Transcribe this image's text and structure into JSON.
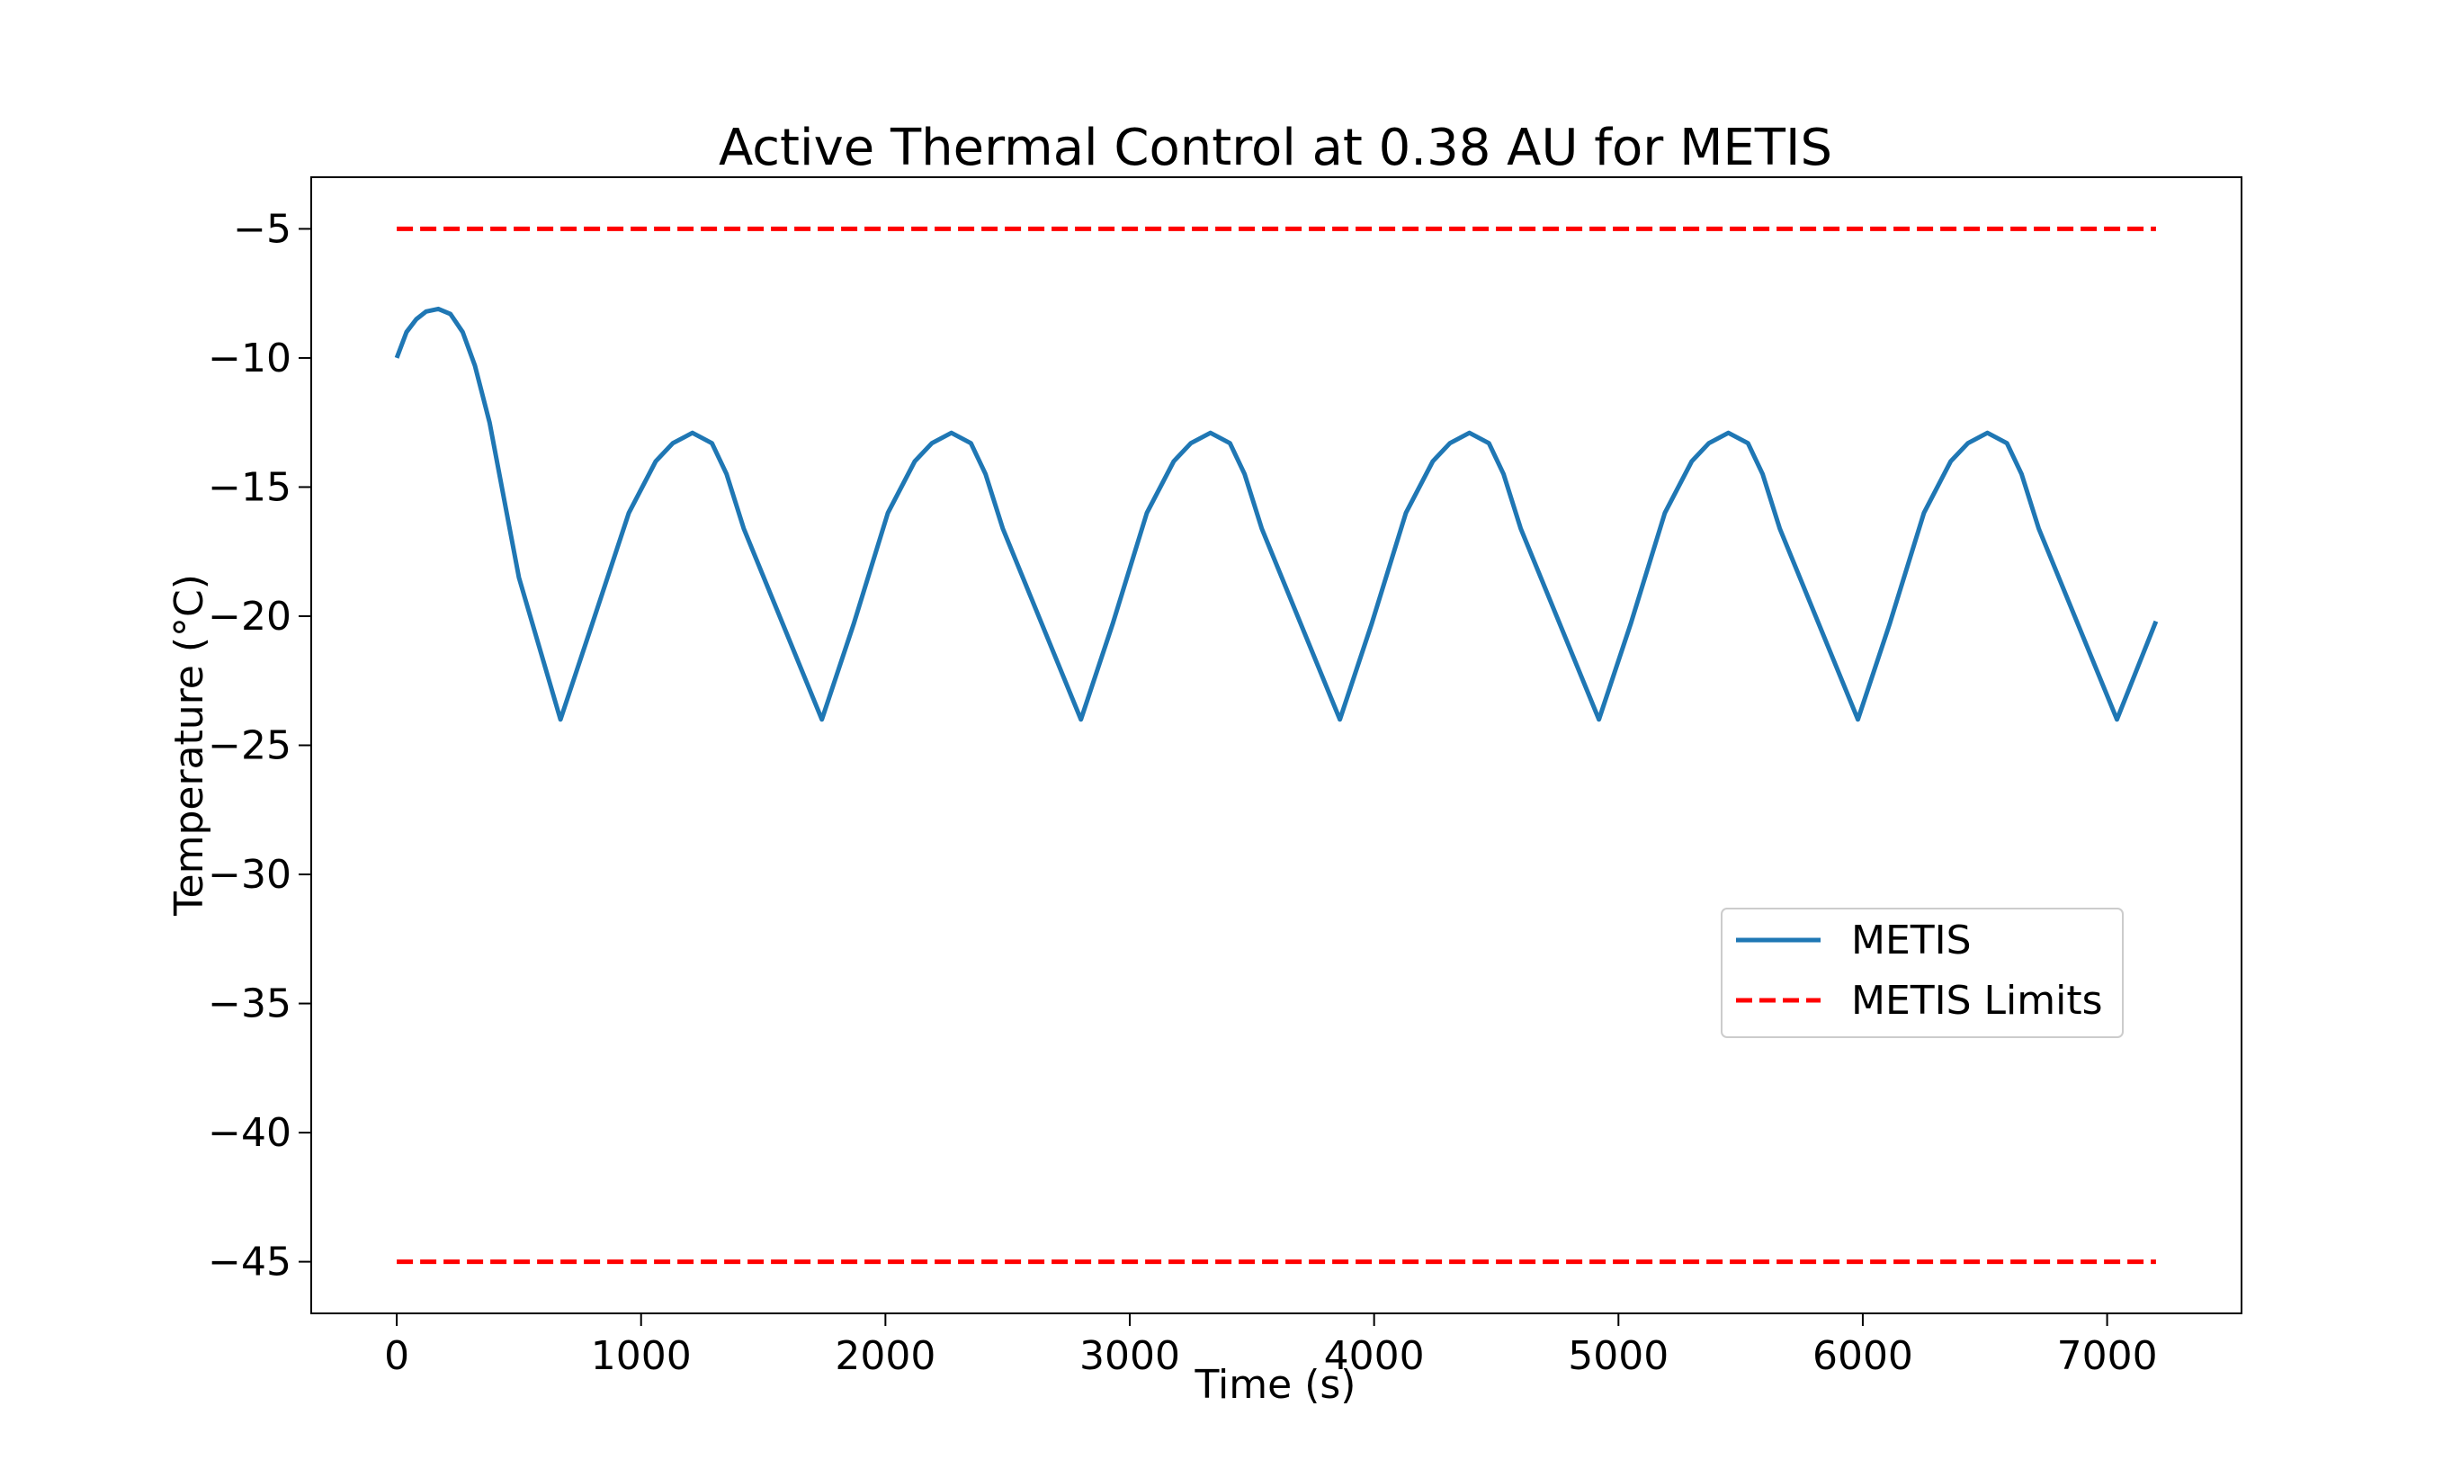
{
  "chart_data": {
    "type": "line",
    "title": "Active Thermal Control at 0.38 AU for METIS",
    "xlabel": "Time (s)",
    "ylabel": "Temperature (°C)",
    "xlim": [
      -350,
      7550
    ],
    "ylim": [
      -47,
      -3
    ],
    "x_ticks": [
      0,
      1000,
      2000,
      3000,
      4000,
      5000,
      6000,
      7000
    ],
    "x_tick_labels": [
      "0",
      "1000",
      "2000",
      "3000",
      "4000",
      "5000",
      "6000",
      "7000"
    ],
    "y_ticks": [
      -5,
      -10,
      -15,
      -20,
      -25,
      -30,
      -35,
      -40,
      -45
    ],
    "y_tick_labels": [
      "−5",
      "−10",
      "−15",
      "−20",
      "−25",
      "−30",
      "−35",
      "−40",
      "−45"
    ],
    "grid": false,
    "legend_position": "center-right",
    "legend": [
      {
        "label": "METIS",
        "color": "#1f77b4",
        "style": "solid"
      },
      {
        "label": "METIS Limits",
        "color": "#ff0000",
        "style": "dashed"
      }
    ],
    "series": [
      {
        "name": "METIS",
        "color": "#1f77b4",
        "style": "solid",
        "x": [
          0,
          40,
          80,
          120,
          170,
          220,
          270,
          320,
          380,
          440,
          500,
          670,
          800,
          950,
          1060,
          1130,
          1210,
          1290,
          1350,
          1420,
          1740,
          1870,
          2010,
          2120,
          2190,
          2270,
          2350,
          2410,
          2480,
          2800,
          2930,
          3070,
          3180,
          3250,
          3330,
          3410,
          3470,
          3540,
          3860,
          3990,
          4130,
          4240,
          4310,
          4390,
          4470,
          4530,
          4600,
          4920,
          5050,
          5190,
          5300,
          5370,
          5450,
          5530,
          5590,
          5660,
          5980,
          6110,
          6250,
          6360,
          6430,
          6510,
          6590,
          6650,
          6720,
          7040,
          7200
        ],
        "y": [
          -10.0,
          -9.0,
          -8.5,
          -8.2,
          -8.1,
          -8.3,
          -9.0,
          -10.3,
          -12.5,
          -15.5,
          -18.5,
          -24.0,
          -20.3,
          -16.0,
          -14.0,
          -13.3,
          -12.9,
          -13.3,
          -14.5,
          -16.6,
          -24.0,
          -20.3,
          -16.0,
          -14.0,
          -13.3,
          -12.9,
          -13.3,
          -14.5,
          -16.6,
          -24.0,
          -20.3,
          -16.0,
          -14.0,
          -13.3,
          -12.9,
          -13.3,
          -14.5,
          -16.6,
          -24.0,
          -20.3,
          -16.0,
          -14.0,
          -13.3,
          -12.9,
          -13.3,
          -14.5,
          -16.6,
          -24.0,
          -20.3,
          -16.0,
          -14.0,
          -13.3,
          -12.9,
          -13.3,
          -14.5,
          -16.6,
          -24.0,
          -20.3,
          -16.0,
          -14.0,
          -13.3,
          -12.9,
          -13.3,
          -14.5,
          -16.6,
          -24.0,
          -20.2
        ]
      },
      {
        "name": "METIS Limits",
        "color": "#ff0000",
        "style": "dashed",
        "x": [
          0,
          7200
        ],
        "y": [
          -5,
          -5
        ]
      },
      {
        "name": "METIS Limits",
        "color": "#ff0000",
        "style": "dashed",
        "x": [
          0,
          7200
        ],
        "y": [
          -45,
          -45
        ]
      }
    ]
  }
}
